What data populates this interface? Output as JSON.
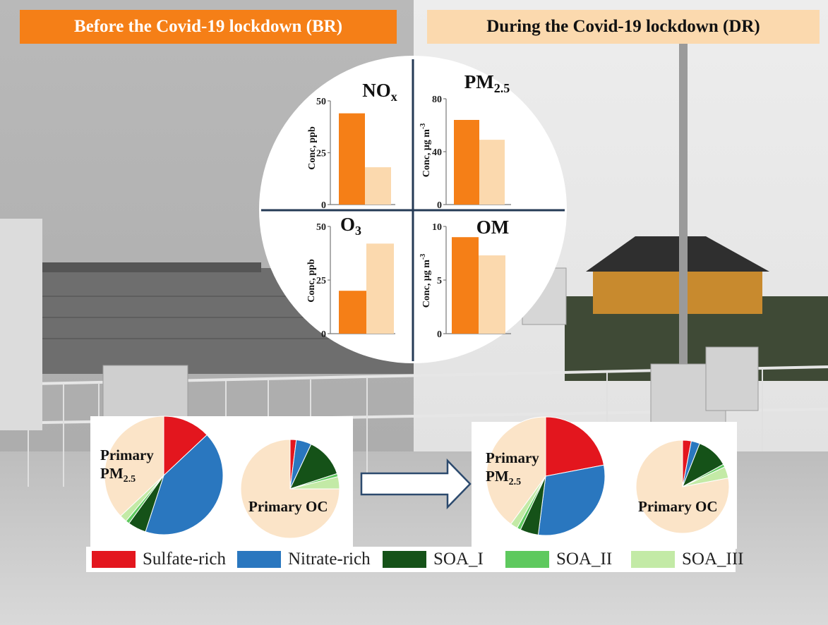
{
  "header": {
    "before_label": "Before the Covid-19 lockdown (BR)",
    "during_label": "During the Covid-19 lockdown (DR)"
  },
  "colors": {
    "BR": "#f57f17",
    "DR": "#fbd9ae",
    "Sulfate-rich": "#e3161e",
    "Nitrate-rich": "#2a77bf",
    "SOA_I": "#155218",
    "SOA_II": "#5ec95e",
    "SOA_III": "#c3eaa6",
    "Primary": "#fbe4c8"
  },
  "legend": {
    "items": [
      "Sulfate-rich",
      "Nitrate-rich",
      "SOA_I",
      "SOA_II",
      "SOA_III"
    ]
  },
  "chart_data": [
    {
      "type": "bar",
      "title": "NOx",
      "ylabel": "Conc, ppb",
      "ylim": [
        0,
        50
      ],
      "yticks": [
        0,
        25,
        50
      ],
      "categories": [
        "BR",
        "DR"
      ],
      "values": [
        44,
        18
      ]
    },
    {
      "type": "bar",
      "title": "PM2.5",
      "ylabel": "Conc, μg m-3",
      "ylim": [
        0,
        80
      ],
      "yticks": [
        0,
        40,
        80
      ],
      "categories": [
        "BR",
        "DR"
      ],
      "values": [
        64,
        49
      ]
    },
    {
      "type": "bar",
      "title": "O3",
      "ylabel": "Conc, ppb",
      "ylim": [
        0,
        50
      ],
      "yticks": [
        0,
        25,
        50
      ],
      "categories": [
        "BR",
        "DR"
      ],
      "values": [
        20,
        42
      ]
    },
    {
      "type": "bar",
      "title": "OM",
      "ylabel": "Conc, μg m-3",
      "ylim": [
        0,
        10
      ],
      "yticks": [
        0,
        5,
        10
      ],
      "categories": [
        "BR",
        "DR"
      ],
      "values": [
        9,
        7.3
      ]
    },
    {
      "type": "pie",
      "panel": "BR",
      "label": "Primary PM2.5",
      "slices": [
        {
          "name": "Sulfate-rich",
          "value": 13
        },
        {
          "name": "Nitrate-rich",
          "value": 42
        },
        {
          "name": "SOA_I",
          "value": 5
        },
        {
          "name": "SOA_II",
          "value": 1
        },
        {
          "name": "SOA_III",
          "value": 2
        },
        {
          "name": "Primary",
          "value": 37
        }
      ]
    },
    {
      "type": "pie",
      "panel": "BR",
      "label": "Primary OC",
      "slices": [
        {
          "name": "Sulfate-rich",
          "value": 2
        },
        {
          "name": "Nitrate-rich",
          "value": 5
        },
        {
          "name": "SOA_I",
          "value": 13
        },
        {
          "name": "SOA_II",
          "value": 1
        },
        {
          "name": "SOA_III",
          "value": 4
        },
        {
          "name": "Primary",
          "value": 75
        }
      ]
    },
    {
      "type": "pie",
      "panel": "DR",
      "label": "Primary PM2.5",
      "slices": [
        {
          "name": "Sulfate-rich",
          "value": 22
        },
        {
          "name": "Nitrate-rich",
          "value": 30
        },
        {
          "name": "SOA_I",
          "value": 5
        },
        {
          "name": "SOA_II",
          "value": 1
        },
        {
          "name": "SOA_III",
          "value": 2
        },
        {
          "name": "Primary",
          "value": 40
        }
      ]
    },
    {
      "type": "pie",
      "panel": "DR",
      "label": "Primary OC",
      "slices": [
        {
          "name": "Sulfate-rich",
          "value": 3
        },
        {
          "name": "Nitrate-rich",
          "value": 3
        },
        {
          "name": "SOA_I",
          "value": 11
        },
        {
          "name": "SOA_II",
          "value": 1
        },
        {
          "name": "SOA_III",
          "value": 4
        },
        {
          "name": "Primary",
          "value": 78
        }
      ]
    }
  ]
}
